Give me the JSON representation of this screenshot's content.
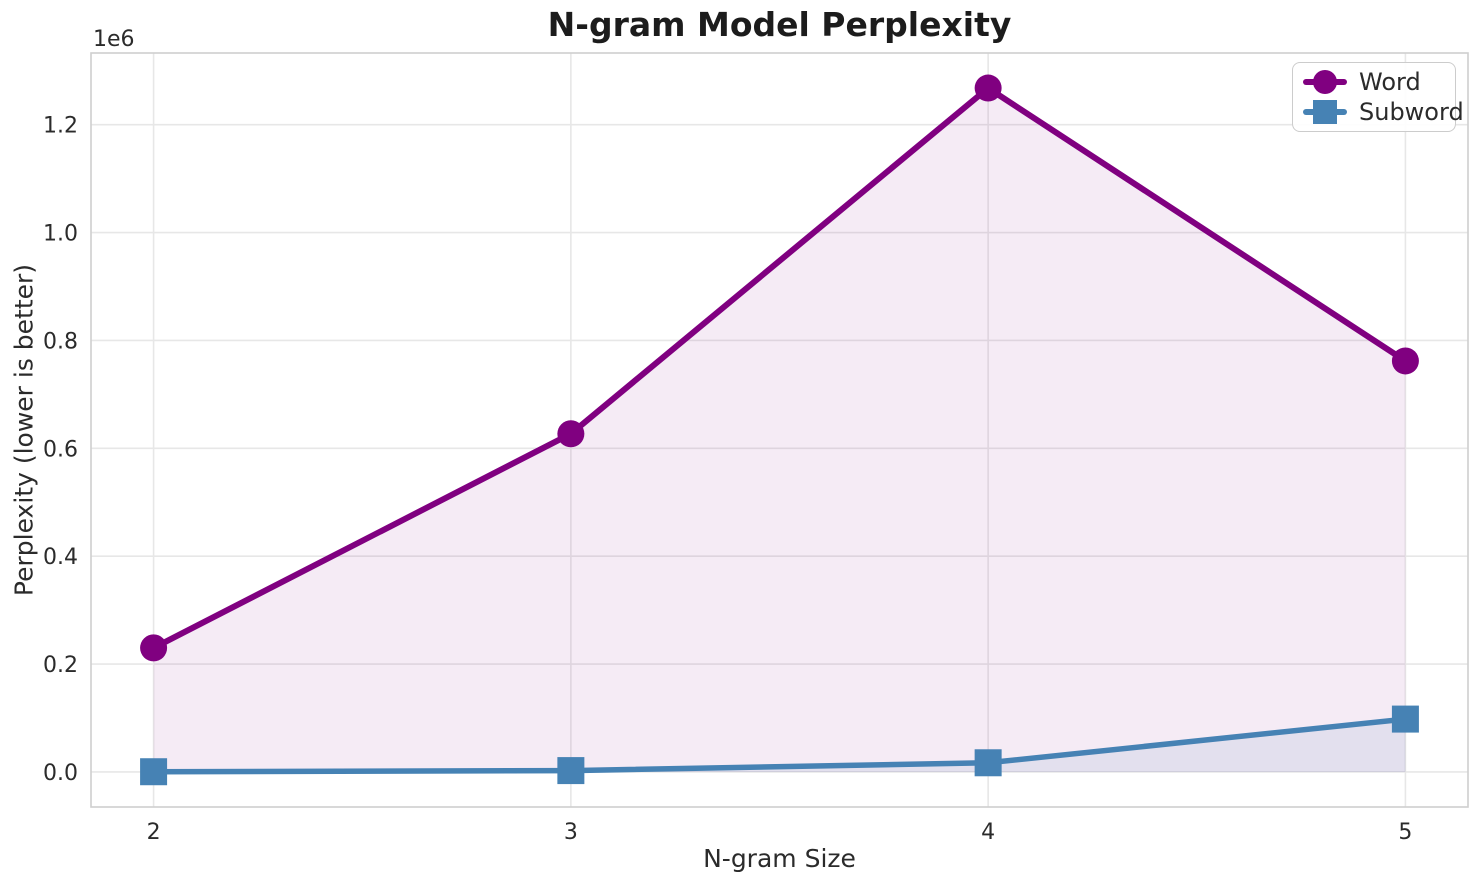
{
  "figure": {
    "title": "N-gram Model Perplexity",
    "x_axis_label": "N-gram Size",
    "y_axis_label": "Perplexity (lower is better)",
    "y_offset_text": "1e6"
  },
  "legend": {
    "items": [
      {
        "label": "Word",
        "color": "#800080",
        "marker": "circle"
      },
      {
        "label": "Subword",
        "color": "#4682b4",
        "marker": "square"
      }
    ]
  },
  "chart_data": {
    "type": "line",
    "title": "N-gram Model Perplexity",
    "xlabel": "N-gram Size",
    "ylabel": "Perplexity (lower is better)",
    "x": [
      2,
      3,
      4,
      5
    ],
    "series": [
      {
        "name": "Word",
        "color": "#800080",
        "marker": "circle",
        "line_width": 6,
        "fill_opacity": 0.08,
        "values": [
          230000,
          627000,
          1268000,
          762000
        ]
      },
      {
        "name": "Subword",
        "color": "#4682b4",
        "marker": "square",
        "line_width": 5.5,
        "fill_opacity": 0.1,
        "values": [
          400,
          2500,
          17000,
          98000
        ]
      }
    ],
    "x_tick_values": [
      2,
      3,
      4,
      5
    ],
    "x_tick_labels": [
      "2",
      "3",
      "4",
      "5"
    ],
    "y_tick_values": [
      0,
      200000,
      400000,
      600000,
      800000,
      1000000,
      1200000
    ],
    "y_tick_labels": [
      "0.0",
      "0.2",
      "0.4",
      "0.6",
      "0.8",
      "1.0",
      "1.2"
    ],
    "y_offset_text": "1e6",
    "xlim": [
      1.85,
      5.15
    ],
    "ylim": [
      -65000,
      1333000
    ],
    "fill_baseline": 0,
    "grid": true,
    "grid_color": "#e7e7e7",
    "spine_color": "#cfcfcf",
    "tick_color": "#2b2b2b",
    "legend_position": "upper right"
  }
}
